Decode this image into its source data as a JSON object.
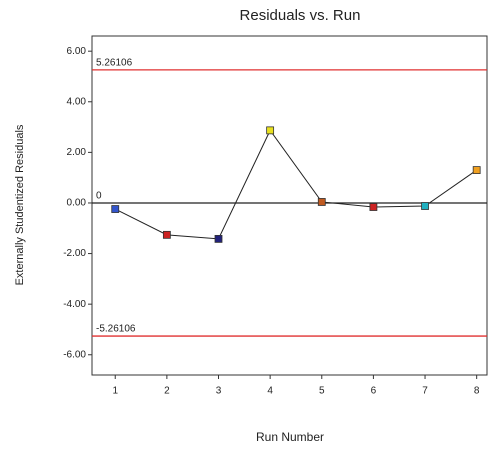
{
  "chart_data": {
    "type": "line",
    "title": "Residuals vs. Run",
    "x_label": "Run Number",
    "y_label": "Externally Studentized Residuals",
    "x": [
      1,
      2,
      3,
      4,
      5,
      6,
      7,
      8
    ],
    "values": [
      -0.24,
      -1.26,
      -1.42,
      2.87,
      0.04,
      -0.16,
      -0.12,
      1.3
    ],
    "marker_colors": [
      "#3355cc",
      "#cc2222",
      "#22227a",
      "#e8e020",
      "#c05a20",
      "#cc2222",
      "#20b0c0",
      "#f0a020"
    ],
    "line_color": "#222222",
    "xlim": [
      0.55,
      8.2
    ],
    "ylim": [
      -6.8,
      6.6
    ],
    "xticks": [
      1,
      2,
      3,
      4,
      5,
      6,
      7,
      8
    ],
    "yticks": [
      {
        "value": -6,
        "label": "-6.00"
      },
      {
        "value": -4,
        "label": "-4.00"
      },
      {
        "value": -2,
        "label": "-2.00"
      },
      {
        "value": 0,
        "label": "0.00"
      },
      {
        "value": 2,
        "label": "2.00"
      },
      {
        "value": 4,
        "label": "4.00"
      },
      {
        "value": 6,
        "label": "6.00"
      }
    ],
    "reference_lines": [
      {
        "value": 5.26106,
        "color": "#e03030"
      },
      {
        "value": 0,
        "color": "#222222"
      },
      {
        "value": -5.26106,
        "color": "#e03030"
      }
    ]
  }
}
